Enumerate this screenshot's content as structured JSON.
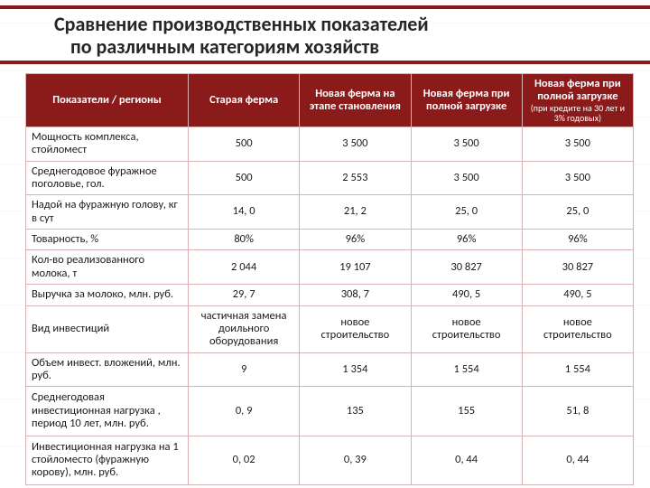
{
  "title_line1": "Сравнение производственных показателей",
  "title_line2": "по различным категориям хозяйств",
  "colors": {
    "header_bg": "#8b1a1a",
    "border": "#d9b3b3",
    "text": "#1a1a1a",
    "bg": "#ffffff"
  },
  "columns": {
    "c0": "Показатели / регионы",
    "c1": "Старая ферма",
    "c2": "Новая ферма на этапе становления",
    "c3": "Новая ферма при полной загрузке",
    "c4_main": "Новая ферма при полной загрузке",
    "c4_sub": "(при кредите на 30 лет и 3% годовых)"
  },
  "rows": [
    {
      "label": "Мощность комплекса, стойломест",
      "v": [
        "500",
        "3 500",
        "3 500",
        "3 500"
      ]
    },
    {
      "label": "Среднегодовое фуражное поголовье, гол.",
      "v": [
        "500",
        "2 553",
        "3 500",
        "3 500"
      ]
    },
    {
      "label": "Надой на фуражную голову, кг в сут",
      "v": [
        "14, 0",
        "21, 2",
        "25, 0",
        "25, 0"
      ]
    },
    {
      "label": "Товарность, %",
      "v": [
        "80%",
        "96%",
        "96%",
        "96%"
      ]
    },
    {
      "label": "Кол-во реализованного молока, т",
      "v": [
        "2 044",
        "19 107",
        "30 827",
        "30 827"
      ]
    },
    {
      "label": "Выручка за молоко, млн. руб.",
      "v": [
        "29, 7",
        "308, 7",
        "490, 5",
        "490, 5"
      ]
    },
    {
      "label": "Вид инвестиций",
      "v": [
        "частичная замена доильного оборудования",
        "новое строительство",
        "новое строительство",
        "новое строительство"
      ]
    },
    {
      "label": "Объем инвест. вложений, млн. руб.",
      "v": [
        "9",
        "1 354",
        "1 554",
        "1 554"
      ]
    },
    {
      "label": "Среднегодовая инвестиционная нагрузка , период 10 лет, млн. руб.",
      "v": [
        "0, 9",
        "135",
        "155",
        "51, 8"
      ]
    },
    {
      "label": "Инвестиционная нагрузка на 1 стойломесто (фуражную корову), млн. руб.",
      "v": [
        "0, 02",
        "0, 39",
        "0, 44",
        "0, 44"
      ]
    }
  ]
}
